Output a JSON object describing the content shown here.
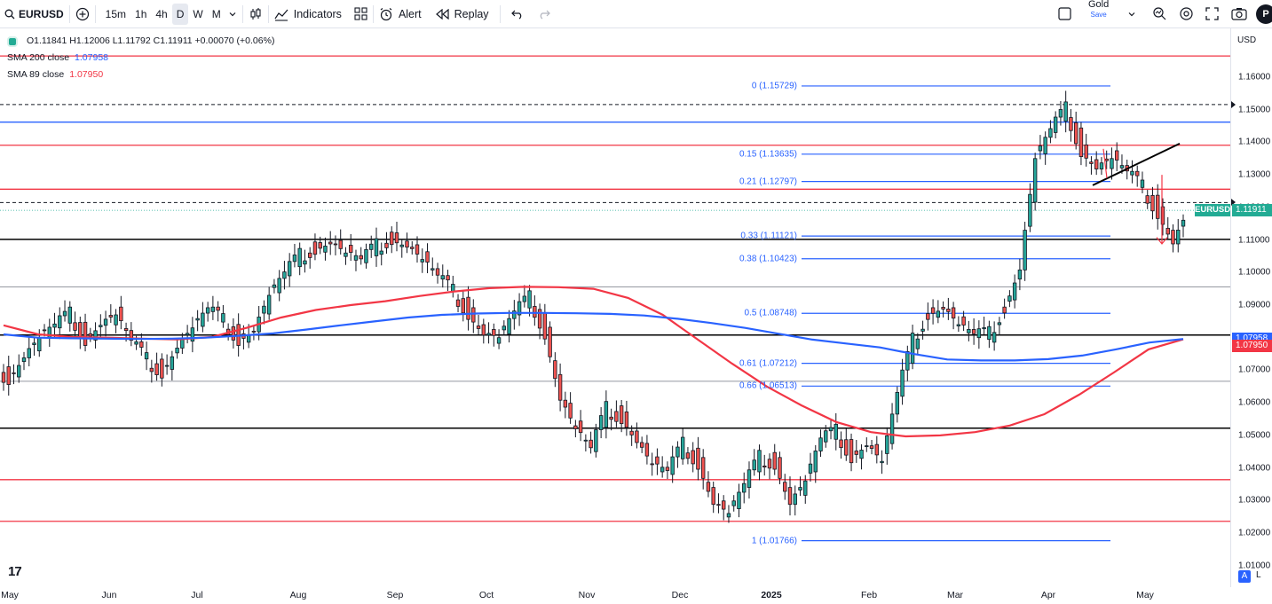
{
  "toolbar": {
    "symbol": "EURUSD",
    "timeframes": [
      "15m",
      "1h",
      "4h",
      "D",
      "W",
      "M"
    ],
    "active_timeframe": "D",
    "indicators_label": "Indicators",
    "alert_label": "Alert",
    "replay_label": "Replay",
    "layout_name": "Gold",
    "layout_status": "Save",
    "avatar_letter": "P"
  },
  "legend": {
    "ohlc": "O1.11841  H1.12006  L1.11792  C1.11911  +0.00070 (+0.06%)",
    "sma200_label": "SMA 200 close",
    "sma200_value": "1.07958",
    "sma89_label": "SMA 89 close",
    "sma89_value": "1.07950"
  },
  "price_axis": {
    "currency": "USD",
    "ticks": [
      "1.16000",
      "1.15000",
      "1.14000",
      "1.13000",
      "1.12000",
      "1.11000",
      "1.10000",
      "1.09000",
      "1.08000",
      "1.07000",
      "1.06000",
      "1.05000",
      "1.04000",
      "1.03000",
      "1.02000",
      "1.01000"
    ],
    "last_price": "1.11911",
    "symbol_tag": "EURUSD",
    "sma200_tag": "1.07958",
    "sma89_tag": "1.07950",
    "sma200_color": "#2962ff",
    "sma89_color": "#f23645",
    "last_price_color": "#22ab94"
  },
  "time_axis": {
    "labels": [
      "May",
      "Jun",
      "Jul",
      "Aug",
      "Sep",
      "Oct",
      "Nov",
      "Dec",
      "2025",
      "Feb",
      "Mar",
      "Apr",
      "May"
    ]
  },
  "fib_levels": [
    {
      "label": "0 (1.15729)",
      "price": 1.15729
    },
    {
      "label": "0.15 (1.13635)",
      "price": 1.13635
    },
    {
      "label": "0.21 (1.12797)",
      "price": 1.12797
    },
    {
      "label": "0.33 (1.11121)",
      "price": 1.11121
    },
    {
      "label": "0.38 (1.10423)",
      "price": 1.10423
    },
    {
      "label": "0.5 (1.08748)",
      "price": 1.08748
    },
    {
      "label": "0.61 (1.07212)",
      "price": 1.07212
    },
    {
      "label": "0.66 (1.06513)",
      "price": 1.06513
    },
    {
      "label": "1 (1.01766)",
      "price": 1.01766
    }
  ],
  "bottom": {
    "auto_label": "A",
    "log_label": "L",
    "logo": "17"
  },
  "chart_data": {
    "type": "candlestick",
    "symbol": "EURUSD",
    "interval": "1D",
    "y_range": [
      1.01,
      1.166
    ],
    "horizontal_lines": {
      "red": [
        1.1665,
        1.1391,
        1.1256,
        1.0364,
        1.0236
      ],
      "blue": [
        1.1462
      ],
      "black": [
        1.1102,
        1.0808,
        1.0522
      ],
      "gray": [
        1.0956,
        1.0666
      ],
      "dashed": [
        1.1516,
        1.1215
      ]
    },
    "sma200": [
      1.081,
      1.08,
      1.0798,
      1.0797,
      1.0796,
      1.0797,
      1.08,
      1.0806,
      1.0813,
      1.0825,
      1.0838,
      1.085,
      1.0862,
      1.087,
      1.0874,
      1.0876,
      1.0876,
      1.0875,
      1.0873,
      1.0868,
      1.0858,
      1.0845,
      1.083,
      1.0812,
      1.0794,
      1.0782,
      1.077,
      1.075,
      1.0733,
      1.073,
      1.073,
      1.0734,
      1.0745,
      1.0764,
      1.0785,
      1.0796
    ],
    "sma89": [
      1.0838,
      1.081,
      1.0802,
      1.08,
      1.0797,
      1.0795,
      1.0802,
      1.083,
      1.0862,
      1.0885,
      1.09,
      1.0912,
      1.0928,
      1.0942,
      1.0952,
      1.0956,
      1.0955,
      1.095,
      1.0922,
      1.087,
      1.0795,
      1.072,
      1.065,
      1.0592,
      1.0541,
      1.051,
      1.0497,
      1.05,
      1.051,
      1.053,
      1.0565,
      1.0625,
      1.0693,
      1.0764,
      1.0795
    ],
    "closes": [
      1.068,
      1.075,
      1.08,
      1.083,
      1.087,
      1.08,
      1.085,
      1.087,
      1.078,
      1.073,
      1.07,
      1.078,
      1.083,
      1.088,
      1.085,
      1.08,
      1.083,
      1.093,
      1.099,
      1.105,
      1.108,
      1.11,
      1.106,
      1.103,
      1.108,
      1.111,
      1.109,
      1.104,
      1.098,
      1.094,
      1.088,
      1.082,
      1.08,
      1.087,
      1.092,
      1.082,
      1.062,
      1.052,
      1.045,
      1.058,
      1.056,
      1.049,
      1.041,
      1.038,
      1.047,
      1.042,
      1.03,
      1.026,
      1.034,
      1.043,
      1.042,
      1.03,
      1.036,
      1.048,
      1.051,
      1.044,
      1.048,
      1.042,
      1.062,
      1.079,
      1.088,
      1.09,
      1.084,
      1.08,
      1.081,
      1.09,
      1.102,
      1.135,
      1.143,
      1.15,
      1.138,
      1.133,
      1.135,
      1.13,
      1.126,
      1.119,
      1.11,
      1.1191
    ]
  }
}
